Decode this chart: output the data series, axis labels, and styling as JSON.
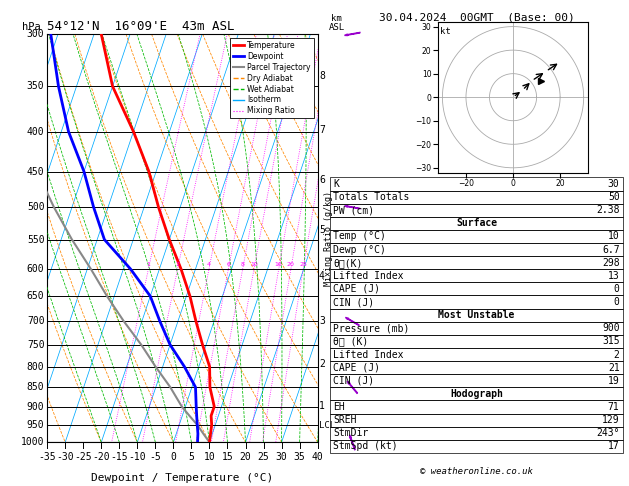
{
  "title_left": "54°12'N  16°09'E  43m ASL",
  "title_right": "30.04.2024  00GMT  (Base: 00)",
  "xlabel": "Dewpoint / Temperature (°C)",
  "pressure_levels": [
    300,
    350,
    400,
    450,
    500,
    550,
    600,
    650,
    700,
    750,
    800,
    850,
    900,
    950,
    1000
  ],
  "pressure_min": 300,
  "pressure_max": 1000,
  "temp_min": -35,
  "temp_max": 40,
  "skew_amount": 38,
  "temp_profile_p": [
    1000,
    975,
    950,
    925,
    900,
    850,
    800,
    750,
    700,
    650,
    600,
    550,
    500,
    450,
    400,
    350,
    300
  ],
  "temp_profile_t": [
    10,
    9.5,
    9,
    8,
    8,
    5,
    3,
    -1,
    -5,
    -9,
    -14,
    -20,
    -26,
    -32,
    -40,
    -50,
    -58
  ],
  "dewp_profile_p": [
    1000,
    975,
    950,
    925,
    900,
    850,
    800,
    750,
    700,
    650,
    600,
    550,
    500,
    450,
    400,
    350,
    300
  ],
  "dewp_profile_t": [
    6.7,
    6,
    5,
    4,
    3,
    1,
    -4,
    -10,
    -15,
    -20,
    -28,
    -38,
    -44,
    -50,
    -58,
    -65,
    -72
  ],
  "parcel_profile_p": [
    1000,
    975,
    950,
    925,
    900,
    850,
    800,
    750,
    700,
    650,
    600,
    550,
    500,
    450,
    400,
    350,
    300
  ],
  "parcel_profile_t": [
    10,
    7.5,
    5,
    2,
    -1,
    -6,
    -12,
    -18,
    -25,
    -32,
    -39,
    -47,
    -55,
    -63,
    -72,
    -81,
    -90
  ],
  "mixing_ratios": [
    1,
    2,
    4,
    6,
    8,
    10,
    16,
    20,
    25
  ],
  "km_ticks": [
    1,
    2,
    3,
    4,
    5,
    6,
    7,
    8
  ],
  "km_pressures": [
    899,
    795,
    700,
    613,
    534,
    462,
    398,
    340
  ],
  "lcl_pressure": 953,
  "wind_barb_pressures": [
    1000,
    850,
    700,
    500,
    300
  ],
  "wind_barb_speeds": [
    8,
    12,
    15,
    20,
    30
  ],
  "wind_barb_dirs": [
    200,
    220,
    240,
    260,
    280
  ],
  "colors": {
    "temperature": "#ff0000",
    "dewpoint": "#0000ff",
    "parcel": "#888888",
    "dry_adiabat": "#ff8800",
    "wet_adiabat": "#00bb00",
    "isotherm": "#00aaff",
    "mixing_ratio": "#ff00ff",
    "background": "#ffffff"
  },
  "hodograph_u": [
    0,
    4,
    8,
    14,
    20
  ],
  "hodograph_v": [
    0,
    3,
    7,
    11,
    15
  ],
  "table_data": {
    "K": 30,
    "TotTot": 50,
    "PW": 2.38,
    "surf_temp": 10,
    "surf_dewp": 6.7,
    "surf_thetae": 298,
    "surf_li": 13,
    "surf_cape": 0,
    "surf_cin": 0,
    "mu_pres": 900,
    "mu_thetae": 315,
    "mu_li": 2,
    "mu_cape": 21,
    "mu_cin": 19,
    "EH": 71,
    "SREH": 129,
    "StmDir": 243,
    "StmSpd": 17
  },
  "copyright": "© weatheronline.co.uk"
}
